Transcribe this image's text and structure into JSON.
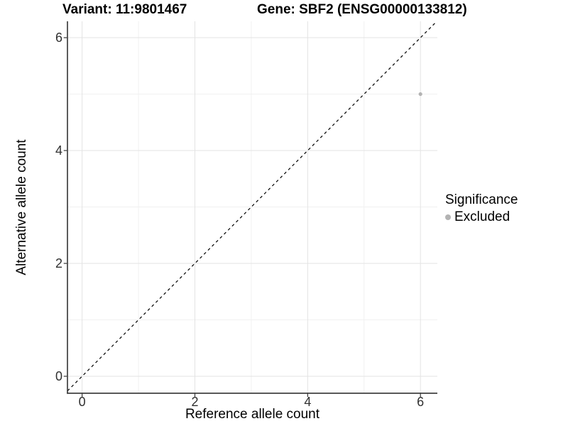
{
  "titles": {
    "variant": "Variant: 11:9801467",
    "gene": "Gene: SBF2 (ENSG00000133812)"
  },
  "chart_data": {
    "type": "scatter",
    "title_left": "Variant: 11:9801467",
    "title_right": "Gene: SBF2 (ENSG00000133812)",
    "xlabel": "Reference allele count",
    "ylabel": "Alternative allele count",
    "xlim": [
      -0.26,
      6.3
    ],
    "ylim": [
      -0.29,
      6.29
    ],
    "xticks": [
      0,
      2,
      4,
      6
    ],
    "yticks": [
      0,
      2,
      4,
      6
    ],
    "xminor": [
      1,
      3,
      5
    ],
    "yminor": [
      1,
      3,
      5
    ],
    "grid": true,
    "identity_line": {
      "slope": 1,
      "intercept": 0,
      "style": "dashed"
    },
    "points": [
      {
        "x": 6,
        "y": 5,
        "series": "Excluded"
      }
    ],
    "legend": {
      "position": "right",
      "title": "Significance",
      "items": [
        {
          "label": "Excluded",
          "color": "#b3b3b3"
        }
      ]
    },
    "colors": {
      "point": "#b3b3b3",
      "grid_major": "#e3e3e3",
      "grid_minor": "#f1f1f1",
      "axis": "#333333",
      "tick": "#333333",
      "identity_line": "#000000"
    }
  }
}
